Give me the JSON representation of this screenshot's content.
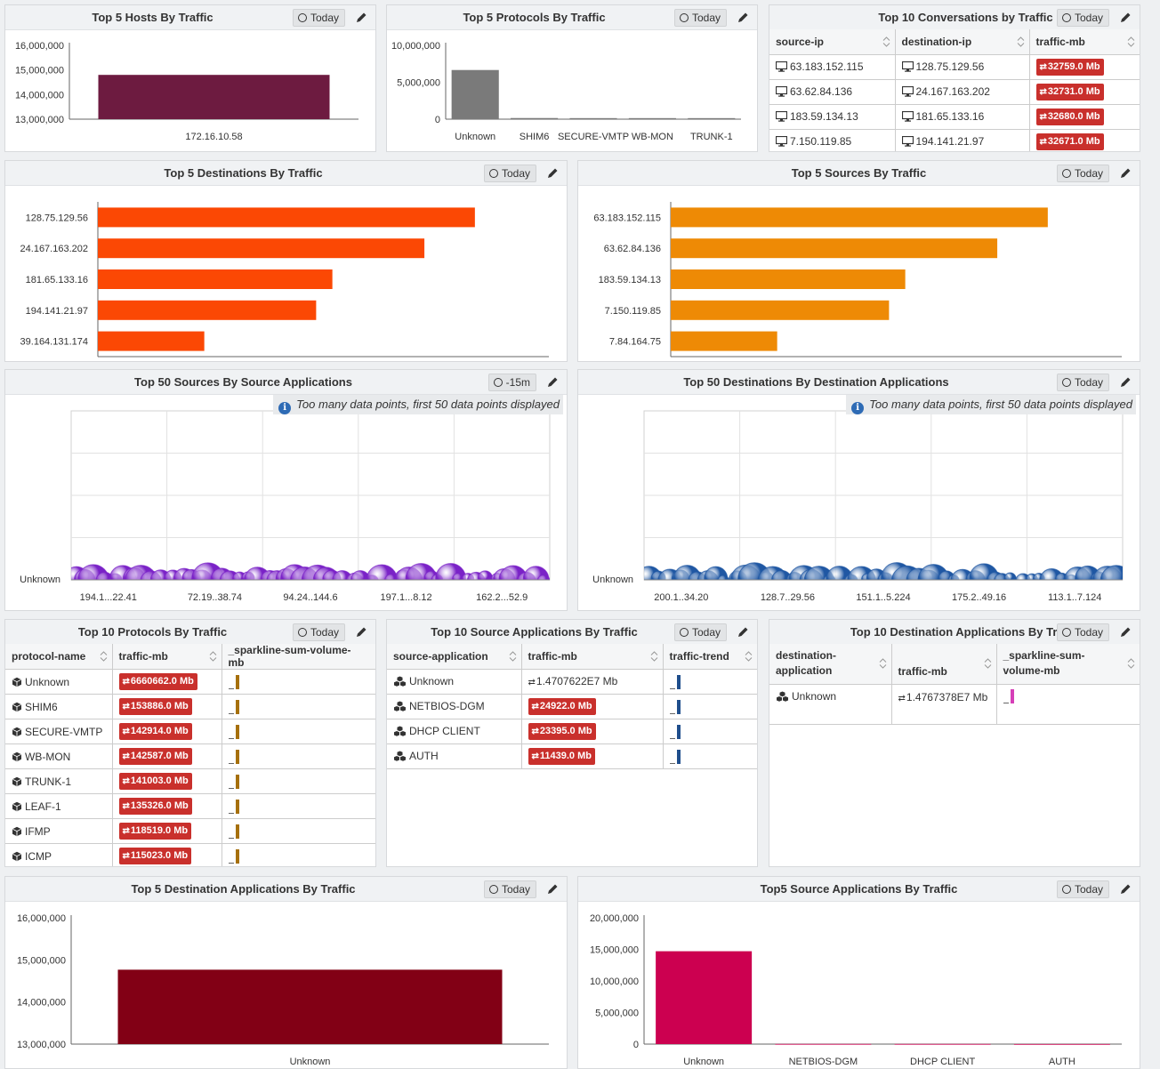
{
  "common": {
    "today": "Today"
  },
  "p1": {
    "title": "Top 5 Hosts By Traffic",
    "time": "Today",
    "yticks": [
      "16,000,000",
      "15,000,000",
      "14,000,000",
      "13,000,000"
    ],
    "xcat": "172.16.10.58"
  },
  "p2": {
    "title": "Top 5 Protocols By Traffic",
    "time": "Today",
    "yticks": [
      "10,000,000",
      "5,000,000",
      "0"
    ],
    "cats": [
      "Unknown",
      "SHIM6",
      "SECURE-VMTP",
      "WB-MON",
      "TRUNK-1"
    ]
  },
  "p3": {
    "title": "Top 10 Conversations by Traffic",
    "time": "Today",
    "cols": [
      "source-ip",
      "destination-ip",
      "traffic-mb"
    ],
    "rows": [
      [
        "63.183.152.115",
        "128.75.129.56",
        "32759.0 Mb"
      ],
      [
        "63.62.84.136",
        "24.167.163.202",
        "32731.0 Mb"
      ],
      [
        "183.59.134.13",
        "181.65.133.16",
        "32680.0 Mb"
      ],
      [
        "7.150.119.85",
        "194.141.21.97",
        "32671.0 Mb"
      ]
    ]
  },
  "p4": {
    "title": "Top 5 Destinations By Traffic",
    "time": "Today",
    "labels": [
      "128.75.129.56",
      "24.167.163.202",
      "181.65.133.16",
      "194.141.21.97",
      "39.164.131.174"
    ],
    "xticks": [
      "32,550",
      "32,600",
      "32,650",
      "32,700",
      "32,750",
      "32,800"
    ]
  },
  "p5": {
    "title": "Top 5 Sources By Traffic",
    "time": "Today",
    "labels": [
      "63.183.152.115",
      "63.62.84.136",
      "183.59.134.13",
      "7.150.119.85",
      "7.84.164.75"
    ],
    "xticks": [
      "32,550",
      "32,600",
      "32,650",
      "32,700",
      "32,750",
      "32,800"
    ]
  },
  "p6": {
    "title": "Top 50 Sources By Source Applications",
    "time": "-15m",
    "note": "Too many data points, first 50 data points displayed",
    "ycat": "Unknown",
    "xticks": [
      "194.1...22.41",
      "72.19..38.74",
      "94.24..144.6",
      "197.1...8.12",
      "162.2...52.9"
    ]
  },
  "p7": {
    "title": "Top 50 Destinations By Destination Applications",
    "time": "Today",
    "note": "Too many data points, first 50 data points displayed",
    "ycat": "Unknown",
    "xticks": [
      "200.1..34.20",
      "128.7..29.56",
      "151.1..5.224",
      "175.2..49.16",
      "113.1..7.124"
    ]
  },
  "p8": {
    "title": "Top 10 Protocols By Traffic",
    "time": "Today",
    "cols": [
      "protocol-name",
      "traffic-mb",
      "_sparkline-sum-volume-mb"
    ],
    "rows": [
      [
        "Unknown",
        "6660662.0 Mb"
      ],
      [
        "SHIM6",
        "153886.0 Mb"
      ],
      [
        "SECURE-VMTP",
        "142914.0 Mb"
      ],
      [
        "WB-MON",
        "142587.0 Mb"
      ],
      [
        "TRUNK-1",
        "141003.0 Mb"
      ],
      [
        "LEAF-1",
        "135326.0 Mb"
      ],
      [
        "IFMP",
        "118519.0 Mb"
      ],
      [
        "ICMP",
        "115023.0 Mb"
      ]
    ]
  },
  "p9": {
    "title": "Top 10 Source Applications By Traffic",
    "time": "Today",
    "cols": [
      "source-application",
      "traffic-mb",
      "traffic-trend"
    ],
    "rows": [
      [
        "Unknown",
        "1.4707622E7 Mb"
      ],
      [
        "NETBIOS-DGM",
        "24922.0 Mb"
      ],
      [
        "DHCP CLIENT",
        "23395.0 Mb"
      ],
      [
        "AUTH",
        "11439.0 Mb"
      ]
    ]
  },
  "p10": {
    "title": "Top 10 Destination Applications By Traffic",
    "time": "Today",
    "cols": [
      "destination-application",
      "traffic-mb",
      "_sparkline-sum-volume-mb"
    ],
    "rows": [
      [
        "Unknown",
        "1.4767378E7 Mb"
      ]
    ]
  },
  "p11": {
    "title": "Top 5 Destination Applications By Traffic",
    "time": "Today",
    "yticks": [
      "16,000,000",
      "15,000,000",
      "14,000,000",
      "13,000,000"
    ],
    "xcat": "Unknown"
  },
  "p12": {
    "title": "Top5 Source Applications By Traffic",
    "time": "Today",
    "yticks": [
      "20,000,000",
      "15,000,000",
      "10,000,000",
      "5,000,000",
      "0"
    ],
    "cats": [
      "Unknown",
      "NETBIOS-DGM",
      "DHCP CLIENT",
      "AUTH"
    ]
  },
  "colors": {
    "hosts": "#6d1b40",
    "protocols": "#7a7a7a",
    "destinations": "#fb4804",
    "sources": "#ee8a05",
    "srcBubbles": "#7a22c7",
    "dstBubbles": "#1f57a3",
    "destApps": "#820015",
    "srcApps": "#cc0050",
    "badge": "#c9302c"
  },
  "chart_data": [
    {
      "type": "bar",
      "title": "Top 5 Hosts By Traffic",
      "categories": [
        "172.16.10.58"
      ],
      "values": [
        14800000
      ],
      "ylim": [
        13000000,
        16000000
      ]
    },
    {
      "type": "bar",
      "title": "Top 5 Protocols By Traffic",
      "categories": [
        "Unknown",
        "SHIM6",
        "SECURE-VMTP",
        "WB-MON",
        "TRUNK-1"
      ],
      "values": [
        6660662,
        153886,
        142914,
        142587,
        141003
      ],
      "ylim": [
        0,
        10000000
      ]
    },
    {
      "type": "bar",
      "orientation": "horizontal",
      "title": "Top 5 Destinations By Traffic",
      "categories": [
        "128.75.129.56",
        "24.167.163.202",
        "181.65.133.16",
        "194.141.21.97",
        "39.164.131.174"
      ],
      "values": [
        32759,
        32731,
        32680,
        32671,
        32609
      ],
      "xlim": [
        32550,
        32800
      ]
    },
    {
      "type": "bar",
      "orientation": "horizontal",
      "title": "Top 5 Sources By Traffic",
      "categories": [
        "63.183.152.115",
        "63.62.84.136",
        "183.59.134.13",
        "7.150.119.85",
        "7.84.164.75"
      ],
      "values": [
        32759,
        32731,
        32680,
        32671,
        32609
      ],
      "xlim": [
        32550,
        32800
      ]
    },
    {
      "type": "scatter",
      "title": "Top 50 Sources By Source Applications",
      "y_category": "Unknown",
      "x_ticks": [
        "194.1...22.41",
        "72.19..38.74",
        "94.24..144.6",
        "197.1...8.12",
        "162.2...52.9"
      ]
    },
    {
      "type": "scatter",
      "title": "Top 50 Destinations By Destination Applications",
      "y_category": "Unknown",
      "x_ticks": [
        "200.1..34.20",
        "128.7..29.56",
        "151.1..5.224",
        "175.2..49.16",
        "113.1..7.124"
      ]
    },
    {
      "type": "bar",
      "title": "Top 5 Destination Applications By Traffic",
      "categories": [
        "Unknown"
      ],
      "values": [
        14767378
      ],
      "ylim": [
        13000000,
        16000000
      ]
    },
    {
      "type": "bar",
      "title": "Top5 Source Applications By Traffic",
      "categories": [
        "Unknown",
        "NETBIOS-DGM",
        "DHCP CLIENT",
        "AUTH"
      ],
      "values": [
        14707622,
        24922,
        23395,
        11439
      ],
      "ylim": [
        0,
        20000000
      ]
    }
  ]
}
